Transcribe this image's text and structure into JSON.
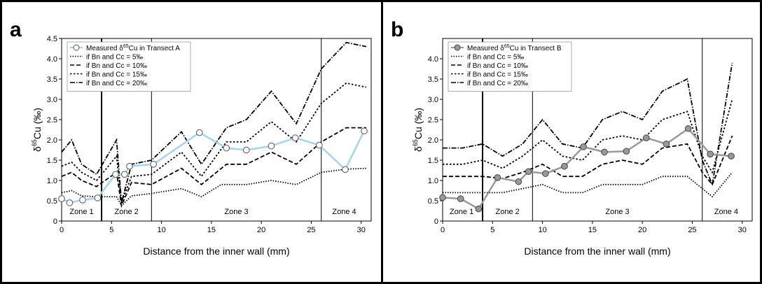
{
  "chart_data": [
    {
      "panel_label": "a",
      "type": "line",
      "xlabel": "Distance from the inner wall (mm)",
      "ylabel_prefix": "δ",
      "ylabel_sup": "65",
      "ylabel_suffix": "Cu (‰)",
      "xlim": [
        0,
        31
      ],
      "ylim": [
        0,
        4.5
      ],
      "xticks": [
        "0",
        "5",
        "10",
        "15",
        "20",
        "25",
        "30"
      ],
      "yticks": [
        "0",
        "0.5",
        "1.0",
        "1.5",
        "2.0",
        "2.5",
        "3.0",
        "3.5",
        "4.0",
        "4.5"
      ],
      "grid": false,
      "legend_position": "top-left",
      "zone_boundaries": [
        4,
        9,
        26
      ],
      "zones": [
        {
          "label": "Zone 1",
          "x": 2
        },
        {
          "label": "Zone 2",
          "x": 6.5
        },
        {
          "label": "Zone 3",
          "x": 17.5
        },
        {
          "label": "Zone 4",
          "x": 28.3
        }
      ],
      "series": [
        {
          "label_pre": "Measured δ",
          "label_sup": "65",
          "label_post": "Cu in Transect A",
          "kind": "measured",
          "color": "#a8d4e6",
          "marker_fill": "#ffffff",
          "marker_stroke": "#555555",
          "x": [
            0,
            0.8,
            2.1,
            3.6,
            5.4,
            6.3,
            6.8,
            9.2,
            13.8,
            16.5,
            18.5,
            21,
            23.4,
            25.8,
            28.4,
            30.3
          ],
          "y": [
            0.55,
            0.45,
            0.52,
            0.57,
            1.15,
            1.15,
            1.35,
            1.4,
            2.18,
            1.8,
            1.75,
            1.85,
            2.05,
            1.87,
            1.27,
            2.22
          ]
        },
        {
          "label": "if Bn and Cc = 5‰",
          "kind": "model",
          "dash": "1.5,2",
          "x": [
            0,
            1,
            2,
            3.5,
            5.5,
            6,
            7,
            9,
            12,
            14,
            16,
            18.5,
            21,
            23.5,
            26,
            28.5,
            30.5
          ],
          "y": [
            0.7,
            0.75,
            0.62,
            0.6,
            0.6,
            0.38,
            0.62,
            0.68,
            0.8,
            0.6,
            0.9,
            0.9,
            1.0,
            0.9,
            1.2,
            1.28,
            1.3
          ]
        },
        {
          "label": "if Bn and Cc = 10‰",
          "kind": "model",
          "dash": "6,3",
          "x": [
            0,
            1,
            2,
            3.5,
            5.5,
            6,
            7,
            9,
            12,
            14,
            16.5,
            18.5,
            21,
            23.5,
            26,
            28.5,
            30.5
          ],
          "y": [
            1.1,
            1.2,
            1.0,
            0.85,
            1.2,
            0.38,
            0.95,
            0.9,
            1.3,
            0.9,
            1.4,
            1.4,
            1.7,
            1.4,
            1.95,
            2.3,
            2.3
          ]
        },
        {
          "label": "if Bn and Cc = 15‰",
          "kind": "model",
          "dash": "2.5,2.5",
          "x": [
            0,
            1,
            2,
            3.5,
            5.5,
            6,
            7,
            9,
            12,
            14,
            16.5,
            18.5,
            21,
            23.5,
            26,
            28.5,
            30.5
          ],
          "y": [
            1.35,
            1.45,
            1.2,
            1.0,
            1.6,
            0.45,
            1.1,
            1.15,
            1.7,
            1.1,
            1.95,
            1.95,
            2.45,
            1.95,
            2.9,
            3.4,
            3.3
          ]
        },
        {
          "label": "if Bn and Cc = 20‰",
          "kind": "model",
          "dash": "7,2,1.5,2",
          "x": [
            0,
            1,
            2,
            3.5,
            5.5,
            6,
            7,
            9,
            12,
            14,
            16.5,
            18.5,
            21,
            23.5,
            26,
            28.5,
            30.5
          ],
          "y": [
            1.7,
            2.0,
            1.4,
            1.15,
            2.0,
            0.45,
            1.4,
            1.5,
            2.2,
            1.4,
            2.3,
            2.5,
            3.2,
            2.4,
            3.75,
            4.4,
            4.3
          ]
        }
      ]
    },
    {
      "panel_label": "b",
      "type": "line",
      "xlabel": "Distance from the inner wall (mm)",
      "ylabel_prefix": "δ",
      "ylabel_sup": "65",
      "ylabel_suffix": "Cu (‰)",
      "xlim": [
        0,
        31
      ],
      "ylim": [
        0,
        4.5
      ],
      "xticks": [
        "0",
        "5",
        "10",
        "15",
        "20",
        "25",
        "30"
      ],
      "yticks": [
        "0",
        "0.5",
        "1.0",
        "1.5",
        "2.0",
        "2.5",
        "3.0",
        "3.5",
        "4.0"
      ],
      "grid": false,
      "legend_position": "top-left",
      "zone_boundaries": [
        4,
        9,
        26
      ],
      "zones": [
        {
          "label": "Zone 1",
          "x": 1.9
        },
        {
          "label": "Zone 2",
          "x": 6.5
        },
        {
          "label": "Zone 3",
          "x": 17.5
        },
        {
          "label": "Zone 4",
          "x": 28.4
        }
      ],
      "series": [
        {
          "label_pre": "Measured δ",
          "label_sup": "65",
          "label_post": "Cu in Transect B",
          "kind": "measured",
          "color": "#999999",
          "marker_fill": "#999999",
          "marker_stroke": "#444444",
          "x": [
            0,
            1.8,
            3.6,
            5.5,
            7.6,
            8.6,
            10.3,
            12.2,
            14.1,
            16.2,
            18.4,
            20.4,
            22.4,
            24.6,
            26.8,
            28.9
          ],
          "y": [
            0.58,
            0.55,
            0.3,
            1.07,
            0.97,
            1.22,
            1.17,
            1.35,
            1.83,
            1.7,
            1.72,
            2.05,
            1.9,
            2.28,
            1.65,
            1.6
          ]
        },
        {
          "label": "if Bn and Cc = 5‰",
          "kind": "model",
          "dash": "1.5,2",
          "x": [
            0,
            2,
            4,
            6,
            8,
            10,
            12,
            14,
            16,
            18,
            20,
            22,
            24.5,
            26,
            27,
            29
          ],
          "y": [
            0.7,
            0.7,
            0.7,
            0.7,
            0.8,
            0.9,
            0.7,
            0.7,
            0.9,
            0.9,
            0.9,
            1.1,
            1.1,
            0.8,
            0.6,
            1.2
          ]
        },
        {
          "label": "if Bn and Cc = 10‰",
          "kind": "model",
          "dash": "6,3",
          "x": [
            0,
            2,
            4,
            6,
            8,
            10,
            12,
            14,
            16,
            18,
            20,
            22,
            24.5,
            26,
            27,
            29
          ],
          "y": [
            1.1,
            1.1,
            1.1,
            1.05,
            1.2,
            1.4,
            1.1,
            1.1,
            1.4,
            1.5,
            1.4,
            1.8,
            1.9,
            1.2,
            0.9,
            2.1
          ]
        },
        {
          "label": "if Bn and Cc = 15‰",
          "kind": "model",
          "dash": "2.5,2.5",
          "x": [
            0,
            2,
            4,
            6,
            8,
            10,
            12,
            14,
            16,
            18,
            20,
            22,
            24.5,
            26,
            27,
            29
          ],
          "y": [
            1.4,
            1.4,
            1.5,
            1.3,
            1.6,
            2.0,
            1.6,
            1.5,
            2.0,
            2.1,
            2.0,
            2.5,
            2.7,
            1.6,
            1.2,
            3.0
          ]
        },
        {
          "label": "if Bn and Cc = 20‰",
          "kind": "model",
          "dash": "7,2,1.5,2",
          "x": [
            0,
            2,
            4,
            6,
            8,
            10,
            12,
            14,
            16,
            18,
            20,
            22,
            24.5,
            26,
            27,
            29
          ],
          "y": [
            1.8,
            1.8,
            1.9,
            1.6,
            1.9,
            2.5,
            1.9,
            1.8,
            2.5,
            2.7,
            2.5,
            3.2,
            3.5,
            1.5,
            0.9,
            3.9
          ]
        }
      ]
    }
  ]
}
